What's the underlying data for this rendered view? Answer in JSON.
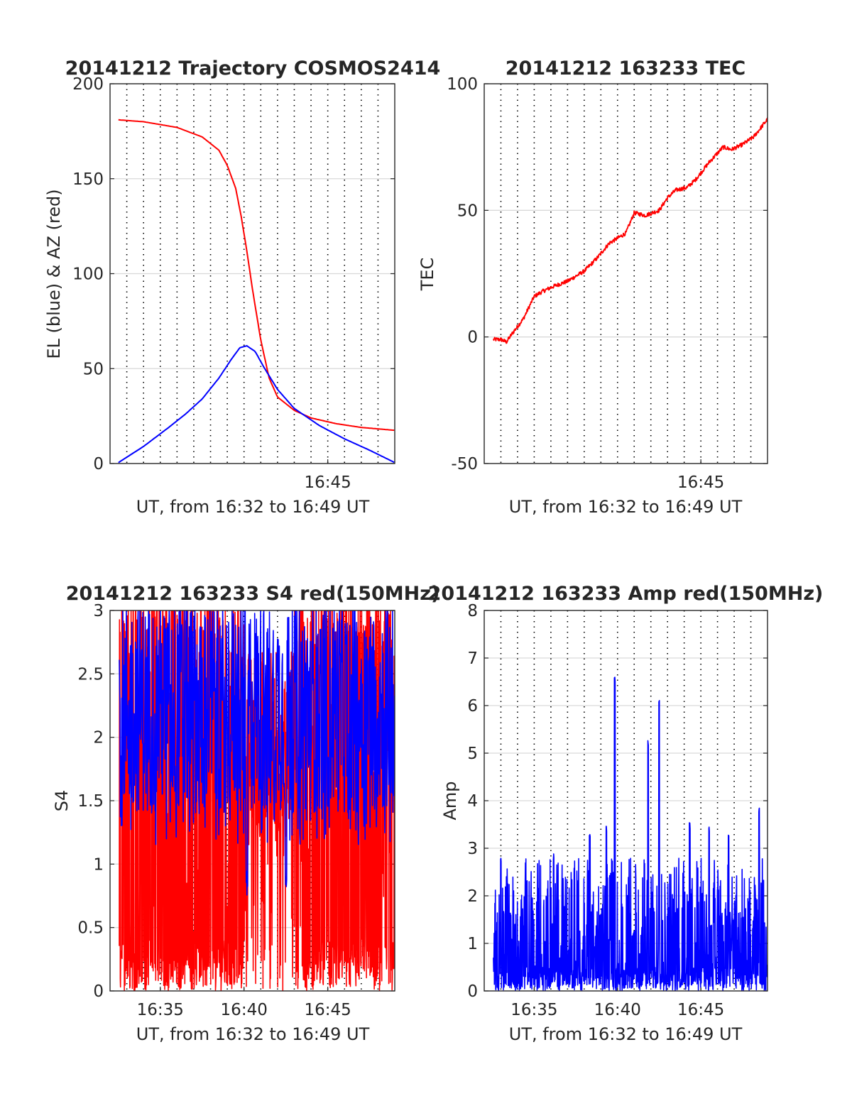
{
  "figure": {
    "background": "#ffffff",
    "colors": {
      "red": "#ff0000",
      "blue": "#0000ff",
      "grid": "#d9d9d9",
      "vgrid": "#000000",
      "axis": "#262626"
    }
  },
  "chart_data": [
    {
      "id": "trajectory",
      "type": "line",
      "title": "20141212 Trajectory COSMOS2414",
      "xlabel": "UT, from 16:32 to 16:49 UT",
      "ylabel": "EL (blue) & AZ (red)",
      "xlim": [
        "16:32:00",
        "16:49:00"
      ],
      "ylim": [
        0,
        200
      ],
      "yticks": [
        "0",
        "50",
        "100",
        "150",
        "200"
      ],
      "xticks": [
        {
          "t": "16:45",
          "label": "16:45"
        }
      ],
      "grid": "horizontal solid; vertical dotted every 1 minute",
      "series": [
        {
          "color": "#ff0000",
          "x": [
            "16:32:30",
            "16:34:00",
            "16:36:00",
            "16:37:30",
            "16:38:30",
            "16:39:00",
            "16:39:30",
            "16:39:50",
            "16:40:10",
            "16:40:30",
            "16:41:00",
            "16:41:30",
            "16:42:00",
            "16:43:00",
            "16:44:00",
            "16:45:30",
            "16:47:00",
            "16:49:00"
          ],
          "y": [
            181,
            180,
            177,
            172,
            165,
            157,
            145,
            130,
            112,
            92,
            65,
            45,
            35,
            28,
            24,
            21,
            19,
            17.5
          ]
        },
        {
          "color": "#0000ff",
          "x": [
            "16:32:30",
            "16:34:00",
            "16:35:30",
            "16:36:30",
            "16:37:30",
            "16:38:30",
            "16:39:15",
            "16:39:45",
            "16:40:10",
            "16:40:40",
            "16:41:10",
            "16:42:00",
            "16:43:00",
            "16:44:30",
            "16:46:00",
            "16:47:30",
            "16:49:00"
          ],
          "y": [
            0.5,
            9,
            19,
            26,
            34,
            45,
            55,
            61,
            62,
            59,
            51,
            39,
            29,
            20,
            13,
            7,
            0.5
          ]
        }
      ]
    },
    {
      "id": "tec",
      "type": "line",
      "title": "20141212 163233 TEC",
      "xlabel": "UT, from 16:32 to 16:49 UT",
      "ylabel": "TEC",
      "xlim": [
        "16:32:00",
        "16:49:00"
      ],
      "ylim": [
        -50,
        100
      ],
      "yticks": [
        "-50",
        "0",
        "50",
        "100"
      ],
      "xticks": [
        {
          "t": "16:45",
          "label": "16:45"
        }
      ],
      "grid": "horizontal solid; vertical dotted every 1 minute",
      "series": [
        {
          "color": "#ff0000",
          "x": [
            "16:32:33",
            "16:33:00",
            "16:33:20",
            "16:33:45",
            "16:34:20",
            "16:35:00",
            "16:35:30",
            "16:36:10",
            "16:37:00",
            "16:38:00",
            "16:38:45",
            "16:39:30",
            "16:40:00",
            "16:40:30",
            "16:41:00",
            "16:41:40",
            "16:42:30",
            "16:43:00",
            "16:43:30",
            "16:44:10",
            "16:44:40",
            "16:45:30",
            "16:46:20",
            "16:46:50",
            "16:47:30",
            "16:48:10",
            "16:49:00"
          ],
          "y": [
            -1,
            -1,
            -2,
            2,
            7,
            16,
            18,
            20,
            22,
            26,
            31,
            37,
            39,
            41,
            49,
            48,
            50,
            55,
            58,
            59,
            62,
            69,
            75,
            74,
            76,
            79,
            86
          ]
        }
      ]
    },
    {
      "id": "s4",
      "type": "line",
      "title": "20141212 163233 S4 red(150MHz)",
      "xlabel": "UT, from 16:32 to 16:49 UT",
      "ylabel": "S4",
      "xlim": [
        "16:32:00",
        "16:49:00"
      ],
      "ylim": [
        0,
        3
      ],
      "yticks": [
        "0",
        "0.5",
        "1",
        "1.5",
        "2",
        "2.5",
        "3"
      ],
      "xticks": [
        {
          "t": "16:35",
          "label": "16:35"
        },
        {
          "t": "16:40",
          "label": "16:40"
        },
        {
          "t": "16:45",
          "label": "16:45"
        }
      ],
      "grid": "horizontal solid; vertical dotted every 1 minute",
      "series": [
        {
          "color": "#ff0000",
          "x_range": [
            "16:32:33",
            "16:49:00"
          ],
          "typical_min": 0,
          "typical_max": 3,
          "note": "dense noisy trace spanning 0 to 3, sparse between 16:40 and 16:43"
        },
        {
          "color": "#0000ff",
          "x_range": [
            "16:32:33",
            "16:49:00"
          ],
          "typical_min": 1.3,
          "typical_max": 3,
          "dips": [
            {
              "t": "16:40:10",
              "y": 0.75
            },
            {
              "t": "16:42:30",
              "y": 0.8
            }
          ]
        }
      ]
    },
    {
      "id": "amp",
      "type": "line",
      "title": "20141212 163233 Amp red(150MHz)",
      "xlabel": "UT, from 16:32 to 16:49 UT",
      "ylabel": "Amp",
      "xlim": [
        "16:32:00",
        "16:49:00"
      ],
      "ylim": [
        0,
        8
      ],
      "yticks": [
        "0",
        "1",
        "2",
        "3",
        "4",
        "5",
        "6",
        "7",
        "8"
      ],
      "xticks": [
        {
          "t": "16:35",
          "label": "16:35"
        },
        {
          "t": "16:40",
          "label": "16:40"
        },
        {
          "t": "16:45",
          "label": "16:45"
        }
      ],
      "grid": "horizontal solid; vertical dotted every 1 minute",
      "series": [
        {
          "color": "#0000ff",
          "x_range": [
            "16:32:33",
            "16:49:00"
          ],
          "typical_max": 2.4,
          "peaks": [
            {
              "t": "16:33:00",
              "y": 2.8
            },
            {
              "t": "16:36:10",
              "y": 2.9
            },
            {
              "t": "16:38:20",
              "y": 3.3
            },
            {
              "t": "16:39:20",
              "y": 3.5
            },
            {
              "t": "16:39:50",
              "y": 6.6
            },
            {
              "t": "16:41:50",
              "y": 5.3
            },
            {
              "t": "16:42:30",
              "y": 6.15
            },
            {
              "t": "16:44:20",
              "y": 3.55
            },
            {
              "t": "16:45:30",
              "y": 3.5
            },
            {
              "t": "16:46:40",
              "y": 3.3
            },
            {
              "t": "16:48:30",
              "y": 3.85
            }
          ]
        }
      ]
    }
  ]
}
